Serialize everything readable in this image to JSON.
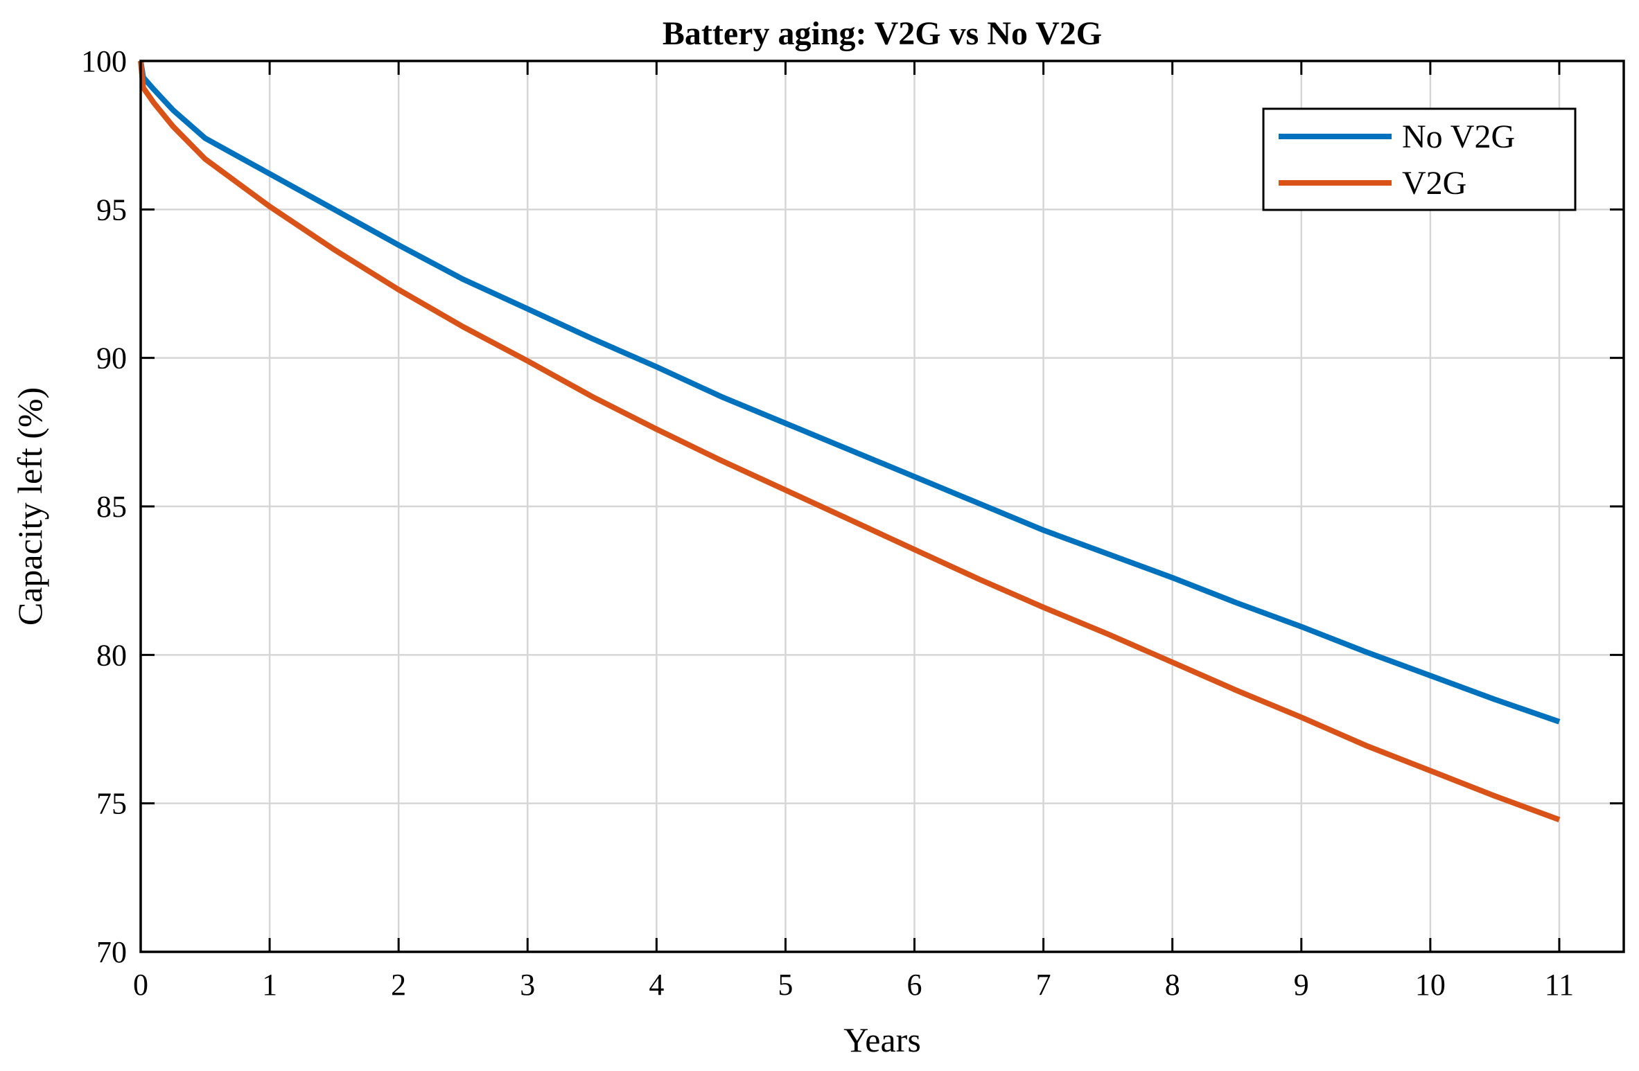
{
  "chart_data": {
    "type": "line",
    "title": "Battery aging: V2G vs No V2G",
    "xlabel": "Years",
    "ylabel": "Capacity left (%)",
    "xlim": [
      0,
      11.5
    ],
    "ylim": [
      70,
      100
    ],
    "xticks": [
      0,
      1,
      2,
      3,
      4,
      5,
      6,
      7,
      8,
      9,
      10,
      11
    ],
    "yticks": [
      70,
      75,
      80,
      85,
      90,
      95,
      100
    ],
    "grid": true,
    "legend_position": "top-right",
    "x": [
      0,
      0.02,
      0.1,
      0.25,
      0.5,
      0.75,
      1,
      1.5,
      2,
      2.5,
      3,
      3.5,
      4,
      4.5,
      5,
      5.5,
      6,
      6.5,
      7,
      7.5,
      8,
      8.5,
      9,
      9.5,
      10,
      10.5,
      11
    ],
    "series": [
      {
        "name": "No V2G",
        "color": "#0072BD",
        "values": [
          100,
          99.45,
          99.05,
          98.35,
          97.4,
          96.8,
          96.2,
          95.0,
          93.8,
          92.65,
          91.65,
          90.65,
          89.7,
          88.7,
          87.8,
          86.9,
          86.0,
          85.1,
          84.2,
          83.4,
          82.6,
          81.75,
          80.95,
          80.1,
          79.3,
          78.5,
          77.75
        ]
      },
      {
        "name": "V2G",
        "color": "#D95319",
        "values": [
          100,
          99.1,
          98.6,
          97.8,
          96.7,
          95.9,
          95.1,
          93.65,
          92.3,
          91.05,
          89.9,
          88.7,
          87.6,
          86.55,
          85.55,
          84.55,
          83.55,
          82.55,
          81.6,
          80.7,
          79.75,
          78.8,
          77.9,
          76.95,
          76.1,
          75.25,
          74.45
        ]
      }
    ]
  }
}
